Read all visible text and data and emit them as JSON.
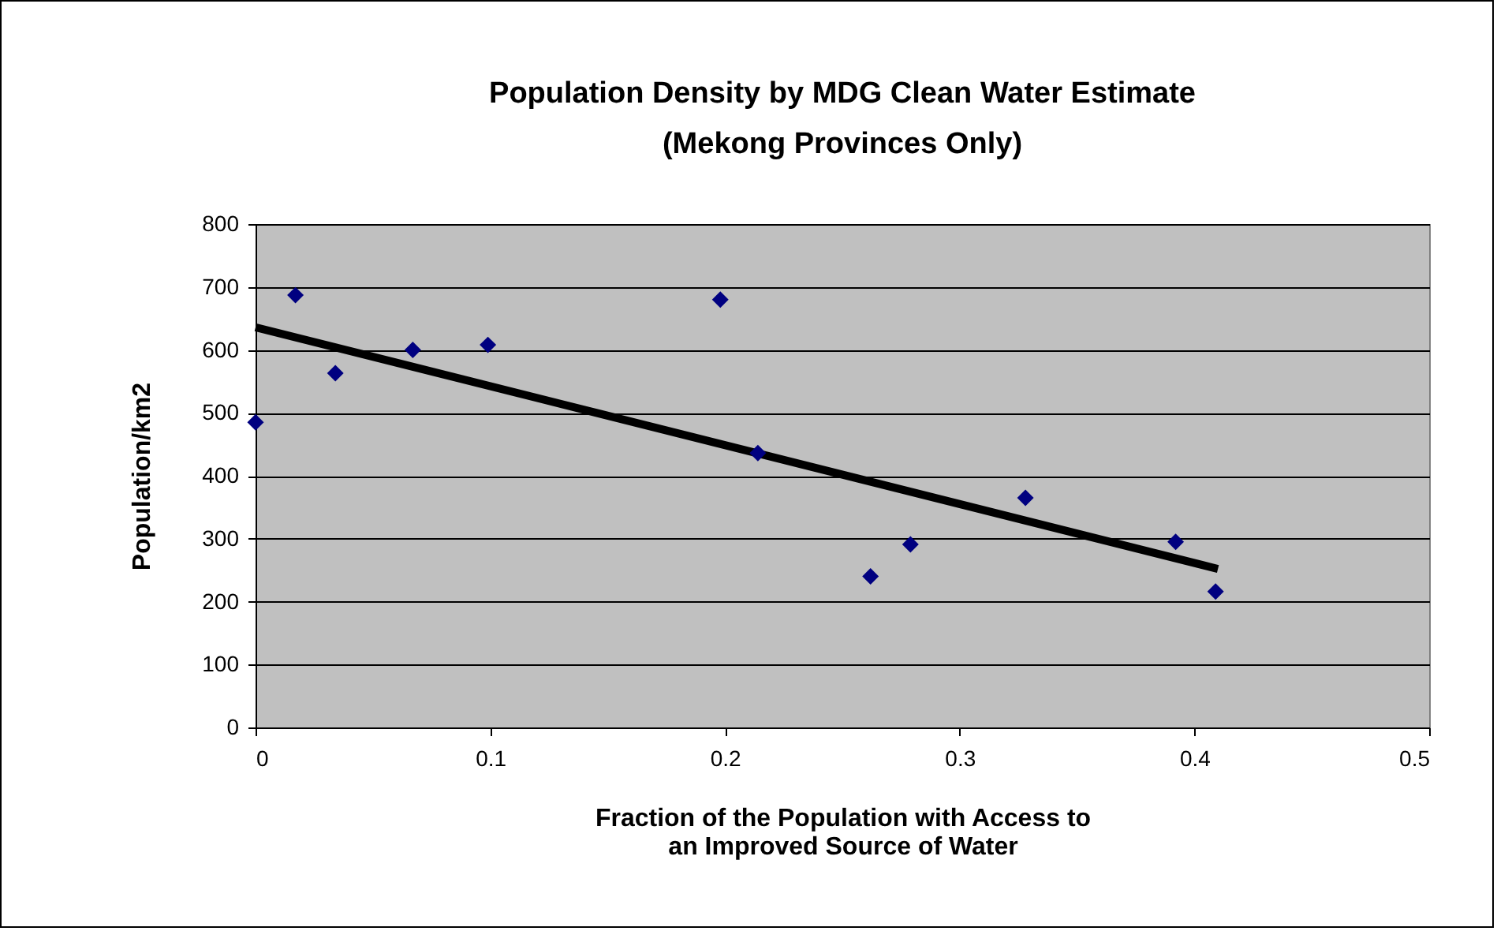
{
  "chart_data": {
    "type": "scatter",
    "title": "Population Density by MDG Clean Water Estimate\n(Mekong Provinces Only)",
    "xlabel": "Fraction of the Population with Access to\nan Improved Source of Water",
    "ylabel": "Population/km2",
    "xlim": [
      0,
      0.5
    ],
    "xticks": [
      0,
      0.1,
      0.2,
      0.3,
      0.4,
      0.5
    ],
    "ylim": [
      0,
      800
    ],
    "yticks": [
      0,
      100,
      200,
      300,
      400,
      500,
      600,
      700,
      800
    ],
    "grid": "y",
    "series": [
      {
        "marker": "diamond",
        "color": "#000080",
        "x": [
          0,
          0.017,
          0.034,
          0.067,
          0.099,
          0.198,
          0.214,
          0.262,
          0.279,
          0.328,
          0.392,
          0.409
        ],
        "values": [
          485,
          687,
          563,
          600,
          608,
          680,
          436,
          240,
          291,
          365,
          295,
          216
        ]
      },
      {
        "type": "line",
        "marker": "none",
        "color": "#000000",
        "x": [
          0,
          0.41
        ],
        "values": [
          636,
          252
        ]
      }
    ]
  }
}
